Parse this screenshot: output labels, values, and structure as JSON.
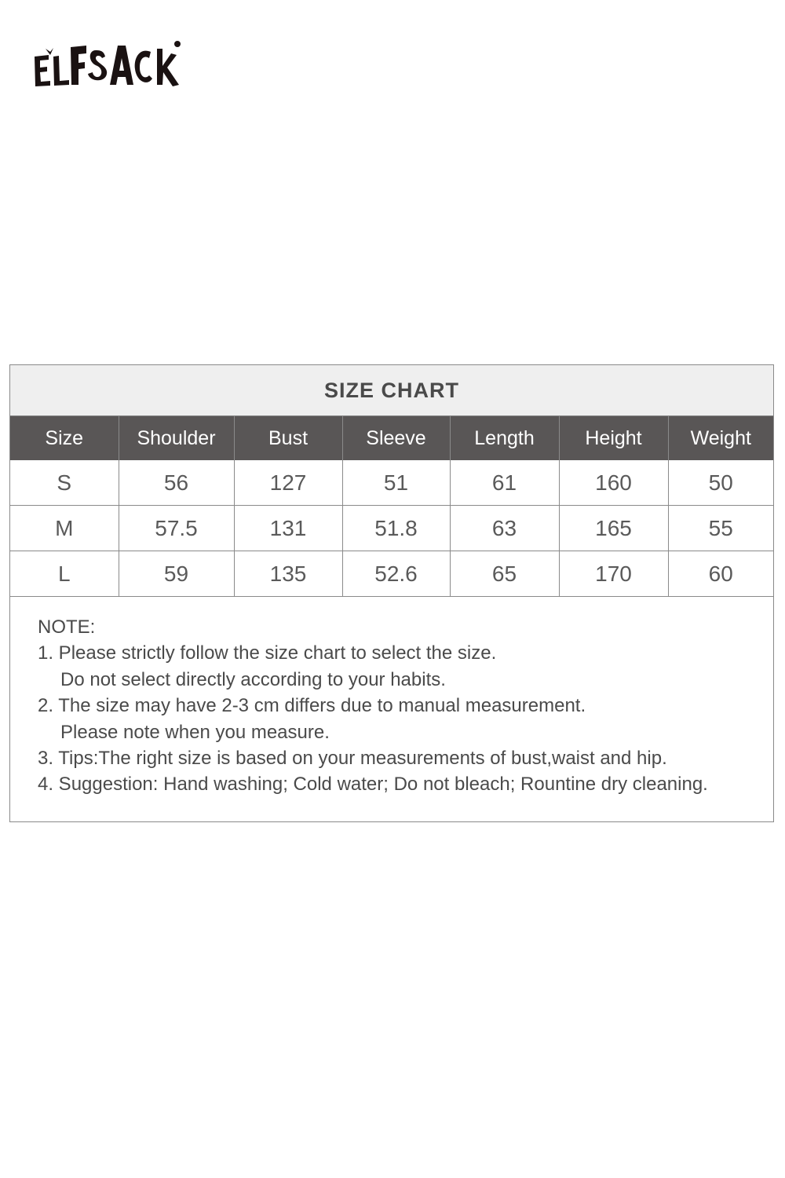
{
  "brand": {
    "logo_text": "ELFSACK"
  },
  "size_chart": {
    "title": "SIZE CHART",
    "columns": [
      "Size",
      "Shoulder",
      "Bust",
      "Sleeve",
      "Length",
      "Height",
      "Weight"
    ],
    "rows": [
      [
        "S",
        "56",
        "127",
        "51",
        "61",
        "160",
        "50"
      ],
      [
        "M",
        "57.5",
        "131",
        "51.8",
        "63",
        "165",
        "55"
      ],
      [
        "L",
        "59",
        "135",
        "52.6",
        "65",
        "170",
        "60"
      ]
    ]
  },
  "notes": {
    "heading": "NOTE:",
    "lines": [
      "1. Please strictly follow the size chart to select the size.",
      "Do not select directly according to your habits.",
      "2. The size may have 2-3 cm differs due to manual measurement.",
      "Please note when you measure.",
      "3. Tips:The right size is based on your measurements of bust,waist and hip.",
      "4. Suggestion: Hand washing; Cold water; Do not bleach; Rountine dry cleaning."
    ]
  },
  "colors": {
    "header_bg": "#595656",
    "title_bg": "#efefef",
    "text": "#4a4a4a"
  }
}
